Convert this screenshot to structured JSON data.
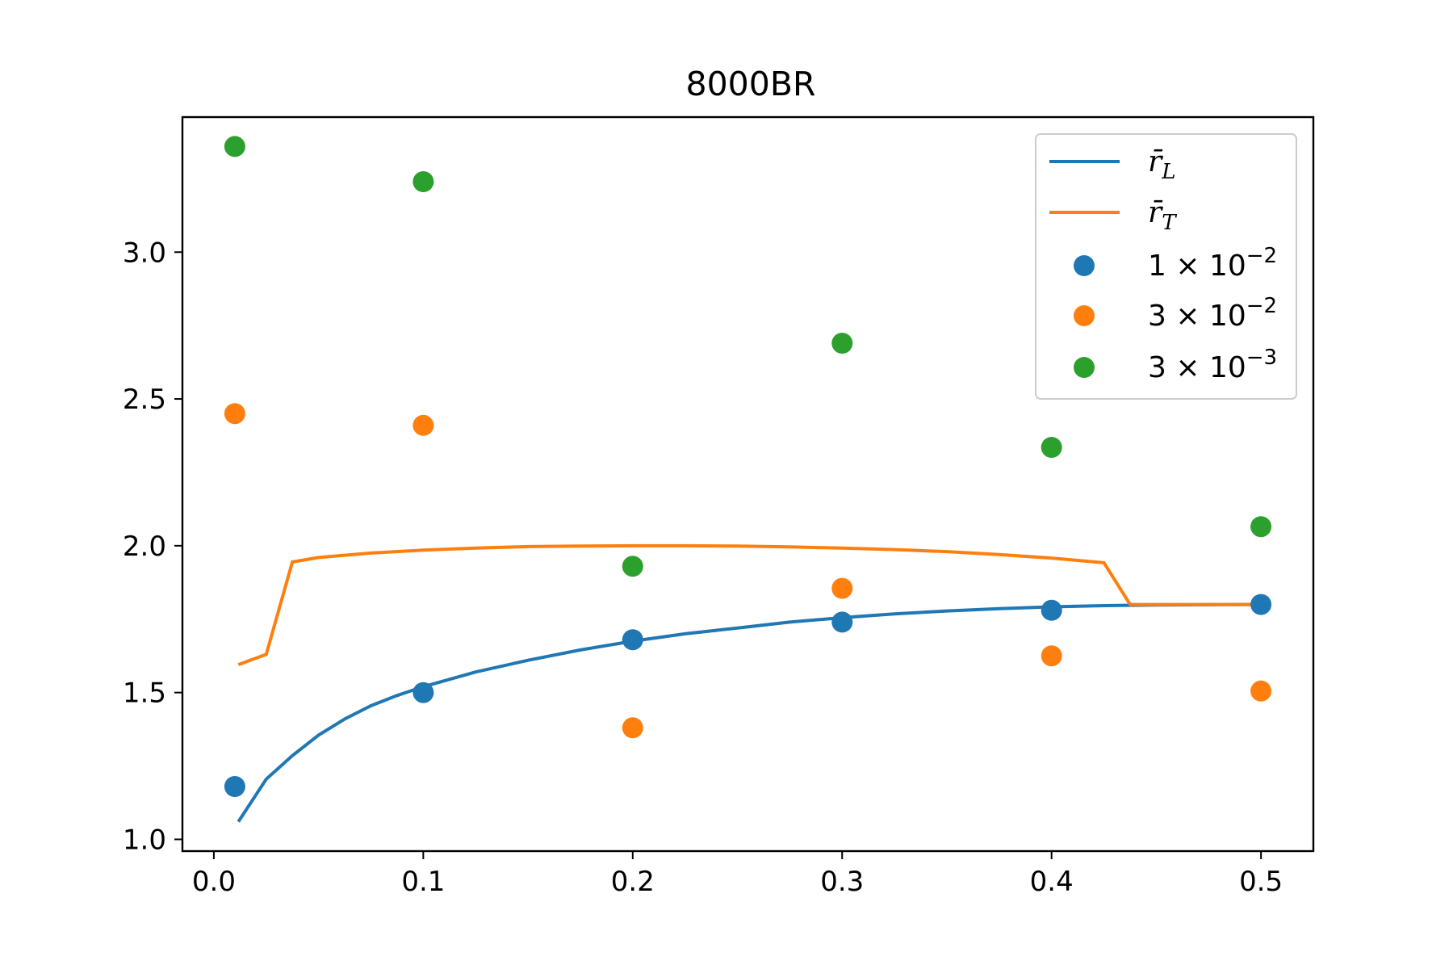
{
  "chart_data": {
    "type": "scatter",
    "title": "8000BR",
    "xlabel": "",
    "ylabel": "",
    "xlim": [
      -0.015,
      0.525
    ],
    "ylim": [
      0.96,
      3.46
    ],
    "x_ticks": [
      0.0,
      0.1,
      0.2,
      0.3,
      0.4,
      0.5
    ],
    "x_tick_labels": [
      "0.0",
      "0.1",
      "0.2",
      "0.3",
      "0.4",
      "0.5"
    ],
    "y_ticks": [
      1.0,
      1.5,
      2.0,
      2.5,
      3.0
    ],
    "y_tick_labels": [
      "1.0",
      "1.5",
      "2.0",
      "2.5",
      "3.0"
    ],
    "grid": false,
    "legend_position": "top-right",
    "lines": [
      {
        "name": "r̄L",
        "label_base": "r̄",
        "label_sub": "L",
        "color": "#1f77b4",
        "x": [
          0.0117,
          0.025,
          0.0375,
          0.05,
          0.0625,
          0.075,
          0.0875,
          0.1,
          0.125,
          0.15,
          0.175,
          0.2,
          0.225,
          0.25,
          0.275,
          0.3,
          0.325,
          0.35,
          0.375,
          0.4,
          0.425,
          0.45,
          0.475,
          0.5
        ],
        "y": [
          1.06,
          1.205,
          1.285,
          1.355,
          1.41,
          1.455,
          1.49,
          1.52,
          1.57,
          1.61,
          1.645,
          1.675,
          1.7,
          1.72,
          1.74,
          1.755,
          1.768,
          1.778,
          1.786,
          1.792,
          1.796,
          1.798,
          1.799,
          1.8
        ]
      },
      {
        "name": "r̄T",
        "label_base": "r̄",
        "label_sub": "T",
        "color": "#ff7f0e",
        "x": [
          0.0117,
          0.025,
          0.0375,
          0.05,
          0.075,
          0.1,
          0.125,
          0.15,
          0.175,
          0.2,
          0.225,
          0.25,
          0.275,
          0.3,
          0.325,
          0.35,
          0.375,
          0.4,
          0.425,
          0.4375,
          0.45,
          0.475,
          0.5
        ],
        "y": [
          1.595,
          1.63,
          1.945,
          1.96,
          1.975,
          1.985,
          1.992,
          1.997,
          1.999,
          2.0,
          2.0,
          1.999,
          1.996,
          1.992,
          1.987,
          1.98,
          1.97,
          1.958,
          1.942,
          1.8,
          1.8,
          1.8,
          1.8
        ]
      }
    ],
    "series": [
      {
        "name": "1 × 10−2",
        "label_mantissa": "1",
        "label_exponent": "−2",
        "color": "#1f77b4",
        "x": [
          0.01,
          0.1,
          0.2,
          0.3,
          0.4,
          0.5
        ],
        "y": [
          1.18,
          1.5,
          1.68,
          1.74,
          1.78,
          1.8
        ]
      },
      {
        "name": "3 × 10−2",
        "label_mantissa": "3",
        "label_exponent": "−2",
        "color": "#ff7f0e",
        "x": [
          0.01,
          0.1,
          0.2,
          0.3,
          0.4,
          0.5
        ],
        "y": [
          2.45,
          2.41,
          1.38,
          1.855,
          1.625,
          1.505
        ]
      },
      {
        "name": "3 × 10−3",
        "label_mantissa": "3",
        "label_exponent": "−3",
        "color": "#2ca02c",
        "x": [
          0.01,
          0.1,
          0.2,
          0.3,
          0.4,
          0.5
        ],
        "y": [
          3.36,
          3.24,
          1.93,
          2.69,
          2.335,
          2.065
        ]
      }
    ]
  }
}
